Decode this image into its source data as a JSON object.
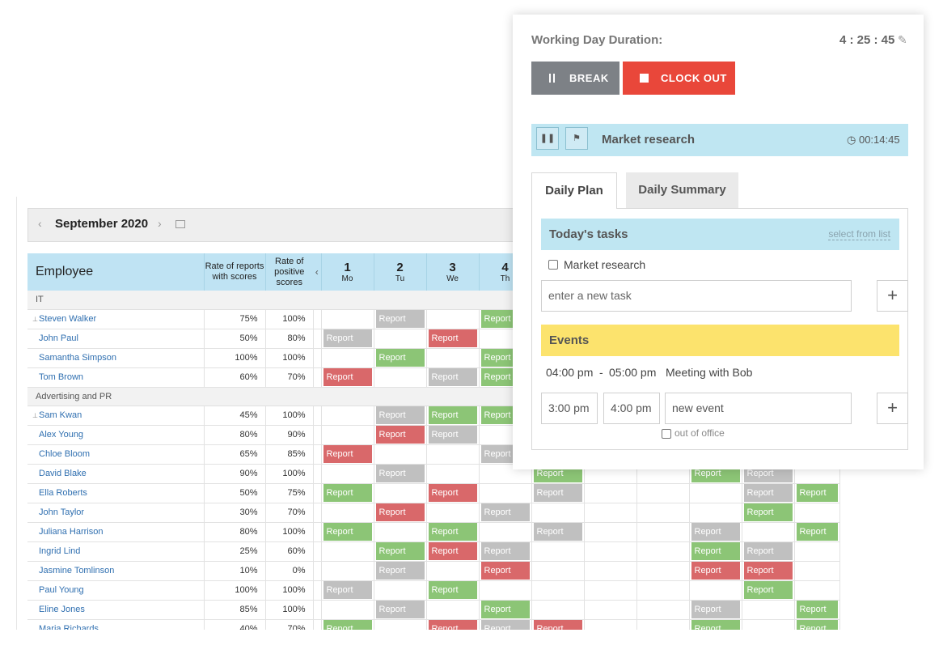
{
  "calendar": {
    "month_label": "September 2020",
    "prev": "‹",
    "next": "›"
  },
  "grid": {
    "col_employee": "Employee",
    "col_rate_reports": "Rate of reports with scores",
    "col_rate_positive": "Rate of positive scores",
    "scroll_left": "‹",
    "days": [
      {
        "num": "1",
        "wd": "Mo"
      },
      {
        "num": "2",
        "wd": "Tu"
      },
      {
        "num": "3",
        "wd": "We"
      },
      {
        "num": "4",
        "wd": "Th"
      }
    ],
    "cell_label": "Report",
    "groups": [
      {
        "name": "IT",
        "rows": [
          {
            "name": "Steven Walker",
            "expand": true,
            "r1": "75%",
            "r2": "100%",
            "cells": [
              "",
              "grey",
              "",
              "green"
            ]
          },
          {
            "name": "John Paul",
            "expand": false,
            "r1": "50%",
            "r2": "80%",
            "cells": [
              "grey",
              "",
              "red",
              ""
            ]
          },
          {
            "name": "Samantha Simpson",
            "expand": false,
            "r1": "100%",
            "r2": "100%",
            "cells": [
              "",
              "green",
              "",
              "green"
            ]
          },
          {
            "name": "Tom Brown",
            "expand": false,
            "r1": "60%",
            "r2": "70%",
            "cells": [
              "red",
              "",
              "grey",
              "green"
            ]
          }
        ]
      },
      {
        "name": "Advertising and PR",
        "rows": [
          {
            "name": "Sam Kwan",
            "expand": true,
            "r1": "45%",
            "r2": "100%",
            "cells": [
              "",
              "grey",
              "green",
              "green"
            ],
            "extra": [
              "",
              "",
              "",
              "",
              "",
              "",
              ""
            ]
          },
          {
            "name": "Alex Young",
            "expand": false,
            "r1": "80%",
            "r2": "90%",
            "cells": [
              "",
              "red",
              "grey",
              ""
            ],
            "extra": [
              "",
              "",
              "",
              "",
              "",
              "",
              ""
            ]
          },
          {
            "name": "Chloe Bloom",
            "expand": false,
            "r1": "65%",
            "r2": "85%",
            "cells": [
              "red",
              "",
              "",
              "grey"
            ],
            "extra": [
              "",
              "",
              "",
              "",
              "",
              "",
              ""
            ]
          },
          {
            "name": "David Blake",
            "expand": false,
            "r1": "90%",
            "r2": "100%",
            "cells": [
              "",
              "grey",
              "",
              ""
            ],
            "extra": [
              "green",
              "",
              "",
              "green",
              "grey",
              ""
            ]
          },
          {
            "name": "Ella Roberts",
            "expand": false,
            "r1": "50%",
            "r2": "75%",
            "cells": [
              "green",
              "",
              "red",
              ""
            ],
            "extra": [
              "grey",
              "",
              "",
              "",
              "grey",
              "green"
            ]
          },
          {
            "name": "John Taylor",
            "expand": false,
            "r1": "30%",
            "r2": "70%",
            "cells": [
              "",
              "red",
              "",
              "grey"
            ],
            "extra": [
              "",
              "",
              "",
              "",
              "green",
              ""
            ]
          },
          {
            "name": "Juliana Harrison",
            "expand": false,
            "r1": "80%",
            "r2": "100%",
            "cells": [
              "green",
              "",
              "green",
              ""
            ],
            "extra": [
              "grey",
              "",
              "",
              "grey",
              "",
              "green"
            ]
          },
          {
            "name": "Ingrid Lind",
            "expand": false,
            "r1": "25%",
            "r2": "60%",
            "cells": [
              "",
              "green",
              "red",
              "grey"
            ],
            "extra": [
              "",
              "",
              "",
              "green",
              "grey",
              ""
            ]
          },
          {
            "name": "Jasmine Tomlinson",
            "expand": false,
            "r1": "10%",
            "r2": "0%",
            "cells": [
              "",
              "grey",
              "",
              "red"
            ],
            "extra": [
              "",
              "",
              "",
              "red",
              "red",
              ""
            ]
          },
          {
            "name": "Paul Young",
            "expand": false,
            "r1": "100%",
            "r2": "100%",
            "cells": [
              "grey",
              "",
              "green",
              ""
            ],
            "extra": [
              "",
              "",
              "",
              "",
              "green",
              ""
            ]
          },
          {
            "name": "Eline Jones",
            "expand": false,
            "r1": "85%",
            "r2": "100%",
            "cells": [
              "",
              "grey",
              "",
              "green"
            ],
            "extra": [
              "",
              "",
              "",
              "grey",
              "",
              "green"
            ]
          },
          {
            "name": "Maria Richards",
            "expand": false,
            "r1": "40%",
            "r2": "70%",
            "cells": [
              "green",
              "",
              "red",
              "grey"
            ],
            "extra": [
              "red",
              "",
              "",
              "green",
              "",
              "green"
            ]
          }
        ]
      }
    ]
  },
  "tracker": {
    "working_day_label": "Working Day Duration:",
    "working_day_time": "4 : 25 : 45",
    "break_label": "BREAK",
    "clockout_label": "CLOCK OUT",
    "current_task": "Market research",
    "current_task_time": "00:14:45",
    "tab_plan": "Daily Plan",
    "tab_summary": "Daily Summary",
    "todays_tasks": "Today's tasks",
    "select_from_list": "select from list",
    "task_item": "Market research",
    "new_task_placeholder": "enter a new task",
    "events_label": "Events",
    "event_start": "04:00 pm",
    "event_dash": "-",
    "event_end": "05:00 pm",
    "event_title": "Meeting with Bob",
    "new_event_start": "3:00 pm",
    "new_event_end": "4:00 pm",
    "new_event_placeholder": "new event",
    "out_of_office": "out of office",
    "plus": "+",
    "colors": {
      "clock_out": "#e9473a",
      "break": "#7d8186",
      "events": "#fce36d",
      "tasks": "#bfe6f2"
    }
  }
}
